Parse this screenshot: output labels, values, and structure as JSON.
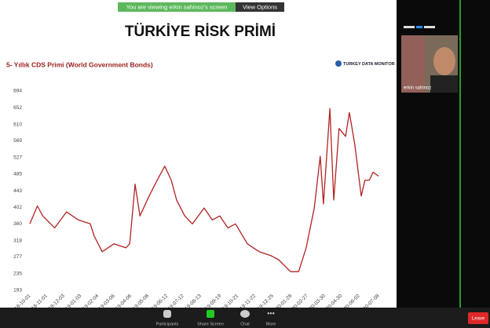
{
  "banner": "You are viewing erkin sahinoz's screen",
  "view_options": "View Options",
  "video_name": "erkin sahinoz",
  "toolbar": [
    "Participants",
    "Share Screen",
    "Chat",
    "More"
  ],
  "leave": "Leave",
  "slide_title": "TÜRKİYE RİSK PRİMİ",
  "logo": "TURKEY DATA MONITOR",
  "chart_data": {
    "type": "line",
    "title": "5- Yıllık CDS Primi (World Government Bonds)",
    "x": [
      "2018-10-01",
      "2018-10-15",
      "2018-10-25",
      "2018-11-16",
      "2018-12-08",
      "2018-12-30",
      "2019-01-21",
      "2019-01-28",
      "2019-02-12",
      "2019-03-06",
      "2019-03-28",
      "2019-04-04",
      "2019-04-14",
      "2019-04-23",
      "2019-05-10",
      "2019-05-25",
      "2019-06-08",
      "2019-06-20",
      "2019-06-30",
      "2019-07-15",
      "2019-07-29",
      "2019-08-20",
      "2019-09-04",
      "2019-09-18",
      "2019-10-03",
      "2019-10-17",
      "2019-11-08",
      "2019-11-30",
      "2019-12-22",
      "2020-01-05",
      "2020-01-27",
      "2020-02-11",
      "2020-02-25",
      "2020-03-11",
      "2020-03-22",
      "2020-03-28",
      "2020-04-09",
      "2020-04-16",
      "2020-04-26",
      "2020-05-08",
      "2020-05-15",
      "2020-05-25",
      "2020-06-06",
      "2020-06-13",
      "2020-06-21",
      "2020-06-28",
      "2020-07-08"
    ],
    "series": [
      {
        "name": "CDS",
        "color": "#b22222",
        "values": [
          360,
          405,
          380,
          350,
          390,
          370,
          360,
          330,
          290,
          310,
          300,
          310,
          460,
          380,
          430,
          470,
          505,
          470,
          420,
          380,
          360,
          400,
          370,
          380,
          350,
          360,
          310,
          290,
          280,
          270,
          240,
          240,
          300,
          400,
          530,
          410,
          650,
          420,
          600,
          580,
          640,
          560,
          430,
          470,
          470,
          490,
          480
        ]
      }
    ],
    "xlim": [
      "2018-10-01",
      "2020-07-08"
    ],
    "xticks": [
      "2018-10-01",
      "2018-11-01",
      "2018-12-03",
      "2019-01-03",
      "2019-02-04",
      "2019-03-06",
      "2019-04-06",
      "2019-05-08",
      "2019-06-12",
      "2019-07-12",
      "2019-08-13",
      "2019-09-19",
      "2019-10-21",
      "2019-11-22",
      "2019-12-25",
      "2020-01-28",
      "2020-02-27",
      "2020-03-30",
      "2020-04-30",
      "2020-06-02",
      "2020-07-08"
    ],
    "ylim": [
      193,
      694
    ],
    "yticks": [
      193,
      235,
      277,
      318,
      360,
      402,
      443,
      485,
      527,
      569,
      610,
      652,
      694
    ],
    "grid": false
  }
}
